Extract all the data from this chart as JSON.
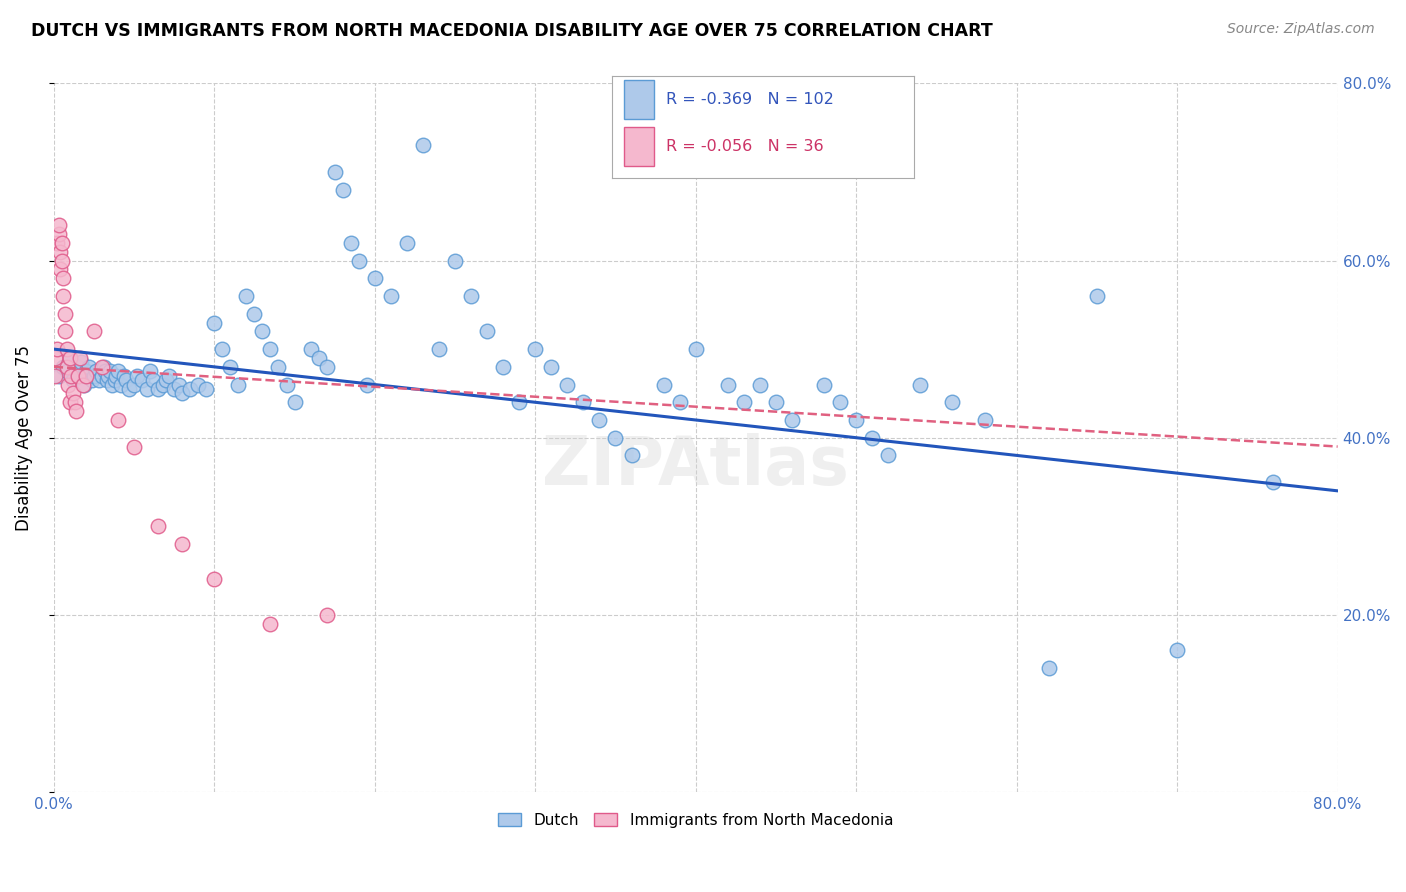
{
  "title": "DUTCH VS IMMIGRANTS FROM NORTH MACEDONIA DISABILITY AGE OVER 75 CORRELATION CHART",
  "source": "Source: ZipAtlas.com",
  "ylabel_label": "Disability Age Over 75",
  "x_min": 0.0,
  "x_max": 0.8,
  "y_min": 0.0,
  "y_max": 0.8,
  "dutch_color": "#aec9ea",
  "dutch_edge_color": "#5b9bd5",
  "macedonian_color": "#f5b8ce",
  "macedonian_edge_color": "#e05a8a",
  "trend_dutch_color": "#2255bb",
  "trend_macedonian_color": "#e06080",
  "legend_dutch_R": "-0.369",
  "legend_dutch_N": "102",
  "legend_macedonian_R": "-0.056",
  "legend_macedonian_N": "36",
  "background_color": "#ffffff",
  "grid_color": "#cccccc",
  "dutch_pts_x": [
    0.003,
    0.006,
    0.008,
    0.01,
    0.012,
    0.014,
    0.015,
    0.017,
    0.018,
    0.019,
    0.02,
    0.022,
    0.024,
    0.025,
    0.026,
    0.028,
    0.03,
    0.031,
    0.032,
    0.033,
    0.034,
    0.035,
    0.036,
    0.038,
    0.039,
    0.04,
    0.042,
    0.044,
    0.045,
    0.047,
    0.05,
    0.052,
    0.055,
    0.058,
    0.06,
    0.062,
    0.065,
    0.068,
    0.07,
    0.072,
    0.075,
    0.078,
    0.08,
    0.085,
    0.09,
    0.095,
    0.1,
    0.105,
    0.11,
    0.115,
    0.12,
    0.125,
    0.13,
    0.135,
    0.14,
    0.145,
    0.15,
    0.16,
    0.165,
    0.17,
    0.175,
    0.18,
    0.185,
    0.19,
    0.195,
    0.2,
    0.21,
    0.22,
    0.23,
    0.24,
    0.25,
    0.26,
    0.27,
    0.28,
    0.29,
    0.3,
    0.31,
    0.32,
    0.33,
    0.34,
    0.35,
    0.36,
    0.38,
    0.39,
    0.4,
    0.42,
    0.43,
    0.44,
    0.45,
    0.46,
    0.48,
    0.49,
    0.5,
    0.51,
    0.52,
    0.54,
    0.56,
    0.58,
    0.62,
    0.65,
    0.7,
    0.76
  ],
  "dutch_pts_y": [
    0.47,
    0.48,
    0.475,
    0.49,
    0.465,
    0.475,
    0.48,
    0.485,
    0.47,
    0.46,
    0.475,
    0.48,
    0.465,
    0.47,
    0.475,
    0.465,
    0.47,
    0.48,
    0.475,
    0.465,
    0.47,
    0.475,
    0.46,
    0.465,
    0.47,
    0.475,
    0.46,
    0.47,
    0.465,
    0.455,
    0.46,
    0.47,
    0.465,
    0.455,
    0.475,
    0.465,
    0.455,
    0.46,
    0.465,
    0.47,
    0.455,
    0.46,
    0.45,
    0.455,
    0.46,
    0.455,
    0.53,
    0.5,
    0.48,
    0.46,
    0.56,
    0.54,
    0.52,
    0.5,
    0.48,
    0.46,
    0.44,
    0.5,
    0.49,
    0.48,
    0.7,
    0.68,
    0.62,
    0.6,
    0.46,
    0.58,
    0.56,
    0.62,
    0.73,
    0.5,
    0.6,
    0.56,
    0.52,
    0.48,
    0.44,
    0.5,
    0.48,
    0.46,
    0.44,
    0.42,
    0.4,
    0.38,
    0.46,
    0.44,
    0.5,
    0.46,
    0.44,
    0.46,
    0.44,
    0.42,
    0.46,
    0.44,
    0.42,
    0.4,
    0.38,
    0.46,
    0.44,
    0.42,
    0.14,
    0.56,
    0.16,
    0.35
  ],
  "mac_pts_x": [
    0.001,
    0.001,
    0.002,
    0.002,
    0.003,
    0.003,
    0.004,
    0.004,
    0.005,
    0.005,
    0.006,
    0.006,
    0.007,
    0.007,
    0.008,
    0.008,
    0.009,
    0.01,
    0.01,
    0.011,
    0.012,
    0.013,
    0.014,
    0.015,
    0.016,
    0.018,
    0.02,
    0.025,
    0.03,
    0.04,
    0.05,
    0.065,
    0.08,
    0.1,
    0.135,
    0.17
  ],
  "mac_pts_y": [
    0.47,
    0.49,
    0.5,
    0.62,
    0.63,
    0.64,
    0.61,
    0.59,
    0.62,
    0.6,
    0.58,
    0.56,
    0.54,
    0.52,
    0.5,
    0.48,
    0.46,
    0.44,
    0.49,
    0.47,
    0.45,
    0.44,
    0.43,
    0.47,
    0.49,
    0.46,
    0.47,
    0.52,
    0.48,
    0.42,
    0.39,
    0.3,
    0.28,
    0.24,
    0.19,
    0.2
  ],
  "dutch_trend_start_y": 0.5,
  "dutch_trend_end_y": 0.34,
  "mac_trend_start_y": 0.48,
  "mac_trend_end_y": 0.39
}
